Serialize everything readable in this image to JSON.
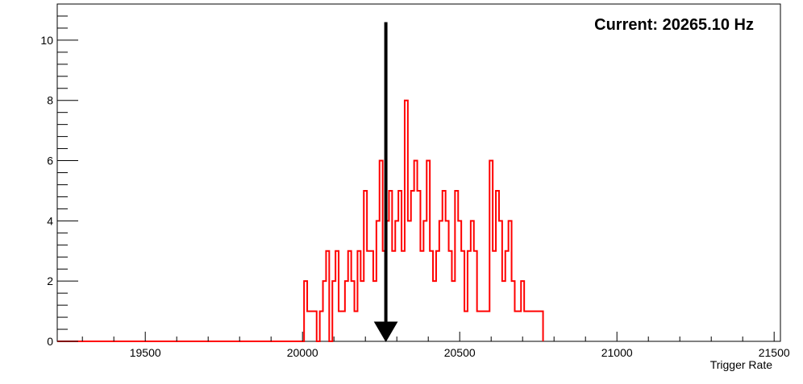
{
  "chart_data": {
    "type": "histogram",
    "title": "",
    "annotation": "Current: 20265.10 Hz",
    "xlabel": "Trigger Rate",
    "ylabel": "",
    "xlim": [
      19220,
      21520
    ],
    "ylim": [
      0,
      11.2
    ],
    "x_ticks": [
      19500,
      20000,
      20500,
      21000,
      21500
    ],
    "x_tick_labels": [
      "19500",
      "20000",
      "20500",
      "21000",
      "21500"
    ],
    "y_ticks": [
      0,
      2,
      4,
      6,
      8,
      10
    ],
    "y_tick_labels": [
      "0",
      "2",
      "4",
      "6",
      "8",
      "10"
    ],
    "marker_x": 20265.1,
    "marker_top_y": 10.6,
    "line_color": "#ff0000",
    "marker_color": "#000000",
    "grid": false,
    "series": [
      {
        "bin_width": 10,
        "bins_start": 20000,
        "values": [
          2,
          1,
          1,
          1,
          0,
          1,
          2,
          3,
          0,
          2,
          3,
          1,
          1,
          2,
          3,
          2,
          1,
          3,
          2,
          5,
          3,
          3,
          2,
          4,
          6,
          3,
          4,
          5,
          3,
          4,
          5,
          3,
          8,
          4,
          5,
          6,
          5,
          3,
          4,
          6,
          3,
          2,
          3,
          4,
          5,
          4,
          3,
          2,
          5,
          4,
          3,
          1,
          3,
          4,
          3,
          1,
          1,
          1,
          1,
          6,
          3,
          5,
          4,
          2,
          3,
          4,
          2,
          1,
          1,
          2,
          1,
          1,
          1,
          1,
          1,
          1,
          0
        ],
        "edges": [
          20005,
          20015,
          20025,
          20035,
          20045,
          20055,
          20065,
          20075,
          20085,
          20095,
          20105,
          20115,
          20125,
          20135,
          20145,
          20155,
          20165,
          20175,
          20185,
          20195,
          20205,
          20215,
          20225,
          20235,
          20245,
          20255,
          20265,
          20275,
          20285,
          20295,
          20305,
          20315,
          20325,
          20335,
          20345,
          20355,
          20365,
          20375,
          20385,
          20395,
          20405,
          20415,
          20425,
          20435,
          20445,
          20455,
          20465,
          20475,
          20485,
          20495,
          20505,
          20515,
          20525,
          20535,
          20545,
          20555,
          20565,
          20575,
          20585,
          20595,
          20605,
          20615,
          20625,
          20635,
          20645,
          20655,
          20665,
          20675,
          20685,
          20695,
          20705,
          20715,
          20725,
          20735,
          20745,
          20755,
          20765
        ]
      }
    ]
  }
}
